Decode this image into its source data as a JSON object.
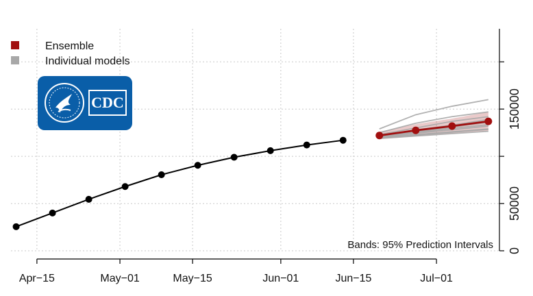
{
  "chart_data": {
    "type": "line",
    "title": "",
    "xlabel": "",
    "ylabel": "",
    "x_tick_labels": [
      "Apr−15",
      "May−01",
      "May−15",
      "Jun−01",
      "Jun−15",
      "Jul−01"
    ],
    "x_tick_dates": [
      "2020-04-15",
      "2020-05-01",
      "2020-05-15",
      "2020-06-01",
      "2020-06-15",
      "2020-07-01"
    ],
    "xlim": [
      "2020-04-10",
      "2020-07-13"
    ],
    "y_tick_labels": [
      "0",
      "50000",
      "150000"
    ],
    "y_tick_values": [
      0,
      50000,
      150000
    ],
    "y_gridlines": [
      0,
      50000,
      100000,
      150000,
      200000
    ],
    "ylim": [
      0,
      235000
    ],
    "grid": true,
    "y_axis_side": "right",
    "legend": {
      "placement": "top-left",
      "entries": [
        {
          "label": "Ensemble",
          "color": "#a10f0f"
        },
        {
          "label": "Individual models",
          "color": "#a8a8a8"
        }
      ]
    },
    "annotation": "Bands: 95% Prediction Intervals",
    "series": [
      {
        "role": "observed",
        "color": "#000000",
        "x": [
          "2020-04-11",
          "2020-04-18",
          "2020-04-25",
          "2020-05-02",
          "2020-05-09",
          "2020-05-16",
          "2020-05-23",
          "2020-05-30",
          "2020-06-06",
          "2020-06-13"
        ],
        "y": [
          25500,
          40000,
          54500,
          68000,
          80500,
          90500,
          99000,
          106000,
          112000,
          117000
        ]
      },
      {
        "name": "Ensemble",
        "color": "#a10f0f",
        "x": [
          "2020-06-20",
          "2020-06-27",
          "2020-07-04",
          "2020-07-11"
        ],
        "y": [
          122000,
          127500,
          132000,
          137000
        ],
        "lower": [
          118000,
          121000,
          124000,
          127000
        ],
        "upper": [
          126000,
          134000,
          140000,
          147000
        ]
      },
      {
        "name": "Individual models",
        "color": "#a8a8a8",
        "lines": [
          [
            129000,
            144000,
            153000,
            160000
          ],
          [
            125000,
            135000,
            142000,
            147000
          ],
          [
            123000,
            130000,
            137000,
            142000
          ],
          [
            122000,
            128000,
            133000,
            139000
          ],
          [
            121000,
            126000,
            131000,
            136000
          ],
          [
            121500,
            125500,
            129500,
            133500
          ],
          [
            120500,
            124500,
            128000,
            132000
          ],
          [
            120000,
            123000,
            126000,
            129000
          ],
          [
            119500,
            122500,
            125500,
            128500
          ],
          [
            119000,
            121500,
            124000,
            126500
          ]
        ]
      }
    ]
  },
  "logo": {
    "text": "CDC",
    "bg_color": "#0a5ea8"
  }
}
